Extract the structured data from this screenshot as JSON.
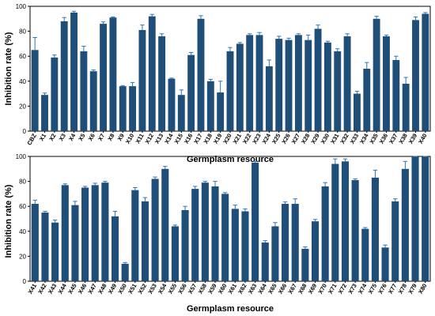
{
  "chart_data": [
    {
      "type": "bar",
      "xlabel": "Germplasm resource",
      "ylabel": "Inhibition rate (%)",
      "ylim": [
        0,
        100
      ],
      "yticks": [
        0,
        20,
        40,
        60,
        80,
        100
      ],
      "bar_color": "#1f4e79",
      "error_color": "#2e75b6",
      "grid": false,
      "categories": [
        "CBZ",
        "X1",
        "X2",
        "X3",
        "X4",
        "X5",
        "X6",
        "X7",
        "X8",
        "X9",
        "X10",
        "X11",
        "X12",
        "X13",
        "X14",
        "X15",
        "X16",
        "X17",
        "X18",
        "X19",
        "X20",
        "X21",
        "X22",
        "X23",
        "X24",
        "X25",
        "X26",
        "X27",
        "X28",
        "X29",
        "X30",
        "X31",
        "X32",
        "X33",
        "X34",
        "X35",
        "X36",
        "X37",
        "X38",
        "X39",
        "X40"
      ],
      "values": [
        65,
        29,
        59,
        88,
        95,
        64,
        48,
        86,
        91,
        36,
        36,
        81,
        92,
        76,
        42,
        29,
        61,
        90,
        40,
        31,
        64,
        70,
        77,
        77,
        52,
        74,
        73,
        77,
        73,
        82,
        71,
        64,
        76,
        30,
        50,
        90,
        76,
        57,
        38,
        89,
        94
      ],
      "errors": [
        10,
        1.5,
        2,
        3,
        1,
        4,
        1,
        1.5,
        0.5,
        0.5,
        3,
        4,
        1.5,
        2,
        0.5,
        4,
        2,
        2.5,
        1.5,
        9,
        3,
        1,
        1,
        2,
        5,
        2,
        1.5,
        1,
        4,
        3,
        1,
        2,
        2,
        2,
        5,
        2,
        1,
        3,
        5,
        2.5,
        1
      ]
    },
    {
      "type": "bar",
      "xlabel": "Germplasm resource",
      "ylabel": "Inhibition rate (%)",
      "ylim": [
        0,
        100
      ],
      "yticks": [
        0,
        20,
        40,
        60,
        80,
        100
      ],
      "bar_color": "#1f4e79",
      "error_color": "#2e75b6",
      "grid": false,
      "categories": [
        "X41",
        "X42",
        "X43",
        "X44",
        "X45",
        "X46",
        "X47",
        "X48",
        "X49",
        "X50",
        "X51",
        "X52",
        "X53",
        "X54",
        "X55",
        "X56",
        "X57",
        "X58",
        "X59",
        "X60",
        "X61",
        "X62",
        "X63",
        "X64",
        "X65",
        "X66",
        "X67",
        "X68",
        "X69",
        "X70",
        "X71",
        "X72",
        "X73",
        "X74",
        "X75",
        "X76",
        "X77",
        "X78",
        "X79",
        "X80"
      ],
      "values": [
        62,
        55,
        47,
        77,
        61,
        75,
        77,
        79,
        52,
        14,
        73,
        64,
        82,
        90,
        44,
        57,
        74,
        79,
        76,
        70,
        58,
        56,
        95,
        31,
        44,
        62,
        62,
        26,
        48,
        76,
        94,
        96,
        81,
        42,
        83,
        27,
        64,
        90,
        100,
        100
      ],
      "errors": [
        3,
        1,
        2,
        1,
        3,
        1,
        1.5,
        1,
        4,
        1,
        2,
        3,
        1.5,
        2,
        1,
        3,
        2,
        1,
        4,
        1,
        3,
        2,
        1,
        1.5,
        3,
        1.5,
        4,
        1.5,
        1.5,
        3,
        4,
        2,
        1,
        1,
        6,
        2,
        2,
        6,
        0.5,
        0.5
      ]
    }
  ]
}
